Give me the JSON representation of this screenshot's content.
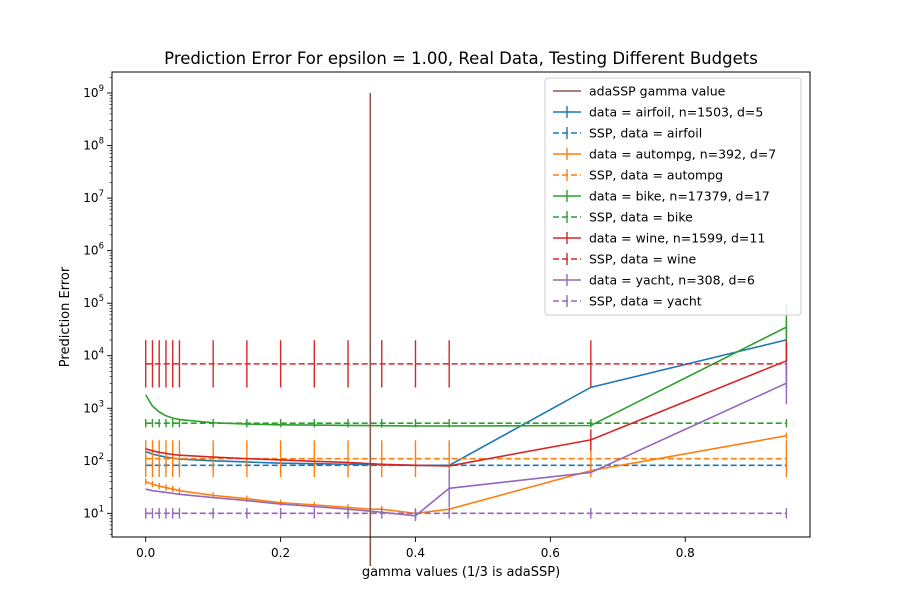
{
  "chart_data": {
    "type": "line",
    "title": "Prediction Error For epsilon = 1.00, Real Data, Testing Different Budgets",
    "xlabel": "gamma values (1/3 is adaSSP)",
    "ylabel": "Prediction Error",
    "xlim": [
      -0.05,
      0.985
    ],
    "ylim_log10": [
      0.55,
      9.4
    ],
    "yscale": "log",
    "x_ticks": [
      0.0,
      0.2,
      0.4,
      0.6,
      0.8
    ],
    "x_tick_labels": [
      "0.0",
      "0.2",
      "0.4",
      "0.6",
      "0.8"
    ],
    "y_tick_exponents": [
      1,
      2,
      3,
      4,
      5,
      6,
      7,
      8,
      9
    ],
    "y_tick_base": "10",
    "grid": false,
    "legend_position": "top-right",
    "gamma_x": [
      0.0,
      0.01,
      0.02,
      0.03,
      0.04,
      0.05,
      0.1,
      0.15,
      0.2,
      0.25,
      0.3,
      0.333,
      0.35,
      0.4,
      0.45,
      0.66,
      0.95
    ],
    "adassp_line": {
      "name": "adaSSP gamma value",
      "x": 0.333,
      "y_range": [
        1,
        1000000000
      ],
      "color": "#8c564b"
    },
    "series": [
      {
        "name": "data = airfoil, n=1503, d=5",
        "style": "solid",
        "color": "#1f77b4",
        "values": [
          150,
          135,
          125,
          118,
          112,
          108,
          100,
          95,
          90,
          88,
          86,
          85,
          84,
          82,
          82,
          2500,
          20000
        ],
        "err": [
          0,
          0,
          0,
          0,
          0,
          0,
          0,
          0,
          0,
          0,
          0,
          0,
          0,
          0,
          0,
          0,
          0.4
        ]
      },
      {
        "name": "SSP, data = airfoil",
        "style": "dashed",
        "color": "#1f77b4",
        "values": [
          82,
          82,
          82,
          82,
          82,
          82,
          82,
          82,
          82,
          82,
          82,
          82,
          82,
          82,
          82,
          82,
          82
        ],
        "err": [
          0.04,
          0.04,
          0.04,
          0.04,
          0.04,
          0.04,
          0.04,
          0.04,
          0.04,
          0.04,
          0.04,
          0.04,
          0.04,
          0.04,
          0.04,
          0.04,
          0.04
        ]
      },
      {
        "name": "data = autompg, n=392, d=7",
        "style": "solid",
        "color": "#ff7f0e",
        "values": [
          40,
          36,
          33,
          31,
          29,
          27,
          22,
          19,
          16,
          14.5,
          13,
          12,
          12,
          10,
          12,
          65,
          300
        ],
        "err": [
          0.06,
          0.06,
          0.06,
          0.06,
          0.06,
          0.06,
          0.06,
          0.06,
          0.06,
          0.06,
          0.06,
          0.06,
          0.06,
          0.06,
          0.06,
          0.06,
          0.06
        ]
      },
      {
        "name": "SSP, data = autompg",
        "style": "dashed",
        "color": "#ff7f0e",
        "values": [
          110,
          110,
          110,
          110,
          110,
          110,
          110,
          110,
          110,
          110,
          110,
          110,
          110,
          110,
          110,
          110,
          110
        ],
        "err": [
          0.35,
          0.35,
          0.35,
          0.35,
          0.35,
          0.35,
          0.35,
          0.35,
          0.35,
          0.35,
          0.35,
          0.35,
          0.35,
          0.35,
          0.35,
          0.35,
          0.35
        ]
      },
      {
        "name": "data = bike, n=17379, d=17",
        "style": "solid",
        "color": "#2ca02c",
        "values": [
          1800,
          1100,
          850,
          720,
          650,
          610,
          530,
          500,
          485,
          478,
          472,
          468,
          466,
          462,
          460,
          470,
          35000
        ],
        "err": [
          0,
          0,
          0,
          0,
          0,
          0,
          0,
          0,
          0,
          0,
          0,
          0,
          0,
          0,
          0,
          0,
          0.45
        ]
      },
      {
        "name": "SSP, data = bike",
        "style": "dashed",
        "color": "#2ca02c",
        "values": [
          520,
          520,
          520,
          520,
          520,
          520,
          520,
          520,
          520,
          520,
          520,
          520,
          520,
          520,
          520,
          520,
          520
        ],
        "err": [
          0.08,
          0.08,
          0.08,
          0.08,
          0.08,
          0.08,
          0.08,
          0.08,
          0.08,
          0.08,
          0.08,
          0.08,
          0.08,
          0.08,
          0.08,
          0.08,
          0.08
        ]
      },
      {
        "name": "data = wine, n=1599, d=11",
        "style": "solid",
        "color": "#d62728",
        "values": [
          170,
          155,
          145,
          138,
          132,
          128,
          118,
          110,
          104,
          98,
          93,
          88,
          86,
          82,
          80,
          250,
          8000
        ],
        "err": [
          0,
          0,
          0,
          0,
          0,
          0,
          0,
          0,
          0,
          0,
          0,
          0,
          0,
          0,
          0,
          0.2,
          0.3
        ]
      },
      {
        "name": "SSP, data = wine",
        "style": "dashed",
        "color": "#d62728",
        "values": [
          7000,
          7000,
          7000,
          7000,
          7000,
          7000,
          7000,
          7000,
          7000,
          7000,
          7000,
          7000,
          7000,
          7000,
          7000,
          7000,
          7000
        ],
        "err": [
          0.45,
          0.45,
          0.45,
          0.45,
          0.45,
          0.45,
          0.45,
          0.45,
          0.45,
          0.45,
          0.45,
          0.45,
          0.45,
          0.45,
          0.45,
          0.45,
          0.45
        ]
      },
      {
        "name": "data = yacht, n=308, d=6",
        "style": "solid",
        "color": "#9467bd",
        "values": [
          29,
          27,
          26,
          25,
          24,
          23,
          20,
          17.5,
          15,
          13.5,
          12,
          11,
          10.5,
          9,
          30,
          60,
          3000
        ],
        "err": [
          0,
          0,
          0,
          0,
          0,
          0,
          0,
          0,
          0,
          0,
          0,
          0,
          0,
          0.1,
          0.35,
          0,
          0.4
        ]
      },
      {
        "name": "SSP, data = yacht",
        "style": "dashed",
        "color": "#9467bd",
        "values": [
          10,
          10,
          10,
          10,
          10,
          10,
          10,
          10,
          10,
          10,
          10,
          10,
          10,
          10,
          10,
          10,
          10
        ],
        "err": [
          0.1,
          0.1,
          0.1,
          0.1,
          0.1,
          0.1,
          0.1,
          0.1,
          0.1,
          0.1,
          0.1,
          0.1,
          0.1,
          0.1,
          0.1,
          0.1,
          0.1
        ]
      }
    ]
  }
}
